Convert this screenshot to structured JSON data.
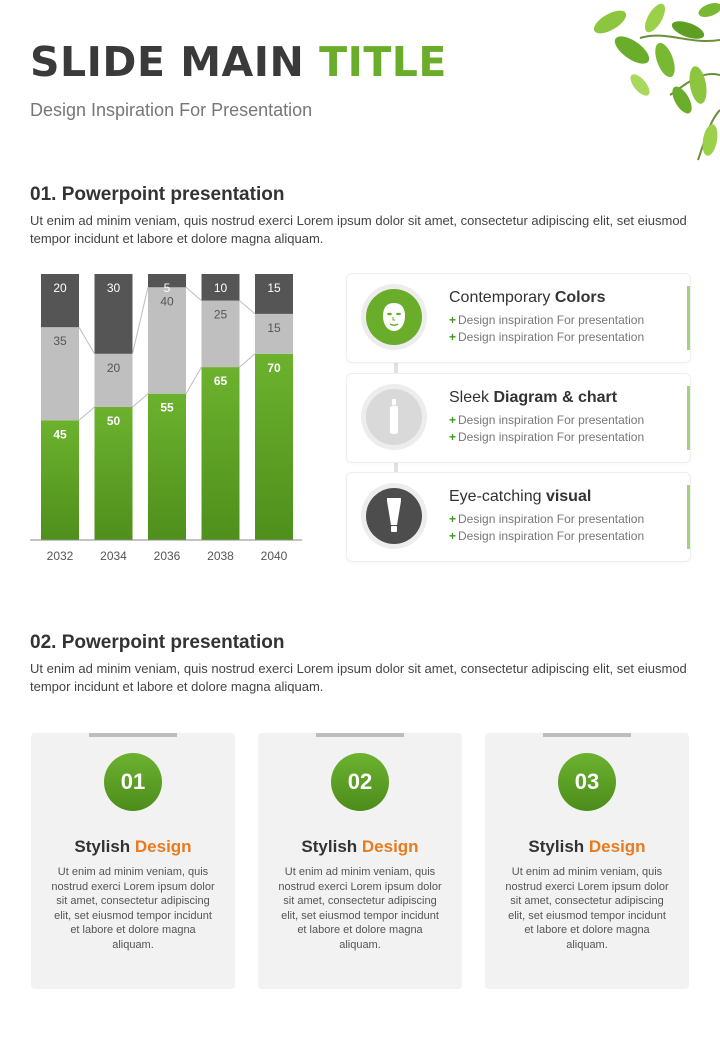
{
  "header": {
    "title_main": "SLIDE MAIN ",
    "title_accent": "TITLE",
    "subtitle": "Design Inspiration For Presentation"
  },
  "section1": {
    "heading": "01. Powerpoint  presentation",
    "body": "Ut enim ad minim veniam, quis nostrud exerci  Lorem ipsum dolor sit amet, consectetur adipiscing elit, set eiusmod tempor incidunt et labore et dolore magna aliquam."
  },
  "chart_data": {
    "type": "bar",
    "stacked": true,
    "categories": [
      "2032",
      "2034",
      "2036",
      "2038",
      "2040"
    ],
    "series": [
      {
        "values": [
          45,
          50,
          55,
          65,
          70
        ],
        "color": "#6aad2a"
      },
      {
        "values": [
          35,
          20,
          40,
          25,
          15
        ],
        "color": "#bfbfbf"
      },
      {
        "values": [
          20,
          30,
          5,
          10,
          15
        ],
        "color": "#555555"
      }
    ],
    "ylim": [
      0,
      100
    ],
    "title": "",
    "xlabel": "",
    "ylabel": "",
    "grid": false,
    "legend": "none"
  },
  "features": [
    {
      "icon": "face-mask-icon",
      "title_plain": "Contemporary ",
      "title_bold": "Colors",
      "lines": [
        "Design inspiration For presentation",
        "Design inspiration For presentation"
      ],
      "icon_color": "#6aad2a"
    },
    {
      "icon": "bottle-icon",
      "title_plain": "Sleek ",
      "title_bold": "Diagram & chart",
      "lines": [
        "Design inspiration For presentation",
        "Design inspiration For presentation"
      ],
      "icon_color": "#d9d9d9"
    },
    {
      "icon": "tube-icon",
      "title_plain": "Eye-catching ",
      "title_bold": "visual",
      "lines": [
        "Design inspiration For presentation",
        "Design inspiration For presentation"
      ],
      "icon_color": "#4d4d4d"
    }
  ],
  "bullet_symbol": "+",
  "section2": {
    "heading": "02. Powerpoint  presentation",
    "body": "Ut enim ad minim veniam, quis nostrud exerci  Lorem ipsum dolor sit amet, consectetur adipiscing elit, set eiusmod tempor incidunt et labore et dolore magna aliquam."
  },
  "steps": [
    {
      "number": "01",
      "title_a": "Stylish ",
      "title_b": "Design",
      "body": "Ut enim ad minim veniam, quis nostrud exerci Lorem ipsum dolor sit amet, consectetur adipiscing elit, set eiusmod tempor incidunt et labore et dolore magna aliquam."
    },
    {
      "number": "02",
      "title_a": "Stylish ",
      "title_b": "Design",
      "body": "Ut enim ad minim veniam, quis nostrud exerci Lorem ipsum dolor sit amet, consectetur adipiscing elit, set eiusmod tempor incidunt et labore et dolore magna aliquam."
    },
    {
      "number": "03",
      "title_a": "Stylish ",
      "title_b": "Design",
      "body": "Ut enim ad minim veniam, quis nostrud exerci Lorem ipsum dolor sit amet, consectetur adipiscing elit, set eiusmod tempor incidunt et labore et dolore magna aliquam."
    }
  ],
  "colors": {
    "accent_green": "#6aad2a",
    "accent_orange": "#ea7a1e",
    "dark_gray": "#555555",
    "light_gray": "#bfbfbf"
  }
}
